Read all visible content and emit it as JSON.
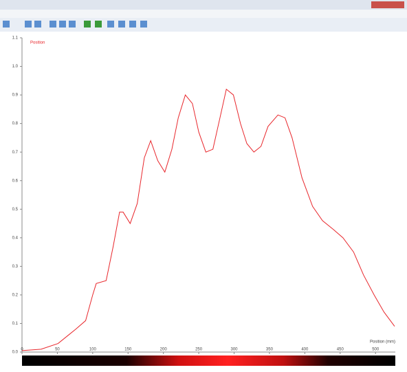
{
  "chart_data": {
    "type": "line",
    "x_label": "Position (mm)",
    "x": [
      0,
      27,
      51,
      66,
      76,
      90,
      100,
      105,
      119,
      129,
      138,
      143,
      153,
      163,
      173,
      182,
      192,
      202,
      212,
      221,
      231,
      241,
      250,
      260,
      270,
      280,
      289,
      299,
      309,
      318,
      328,
      338,
      348,
      362,
      372,
      382,
      396,
      411,
      425,
      440,
      454,
      469,
      483,
      498,
      512,
      527
    ],
    "series": [
      {
        "name": "Position",
        "color": "#e8262b",
        "values": [
          0.005,
          0.01,
          0.03,
          0.06,
          0.08,
          0.11,
          0.2,
          0.24,
          0.25,
          0.37,
          0.49,
          0.49,
          0.45,
          0.52,
          0.68,
          0.74,
          0.67,
          0.63,
          0.71,
          0.82,
          0.9,
          0.87,
          0.77,
          0.7,
          0.71,
          0.82,
          0.92,
          0.9,
          0.8,
          0.73,
          0.7,
          0.72,
          0.79,
          0.83,
          0.82,
          0.75,
          0.61,
          0.51,
          0.46,
          0.43,
          0.4,
          0.35,
          0.27,
          0.2,
          0.14,
          0.09
        ]
      }
    ],
    "xlim": [
      0,
      528
    ],
    "xticks": [
      0,
      50,
      100,
      150,
      200,
      250,
      300,
      350,
      400,
      450,
      500
    ],
    "ylim": [
      0,
      1.1
    ],
    "yticks": [
      {
        "value": 0,
        "label": "0.0"
      },
      0.1,
      0.2,
      0.3,
      0.4,
      0.5,
      0.6,
      0.7,
      0.8,
      0.9,
      {
        "value": 1,
        "label": "1.0"
      },
      1.1
    ]
  }
}
